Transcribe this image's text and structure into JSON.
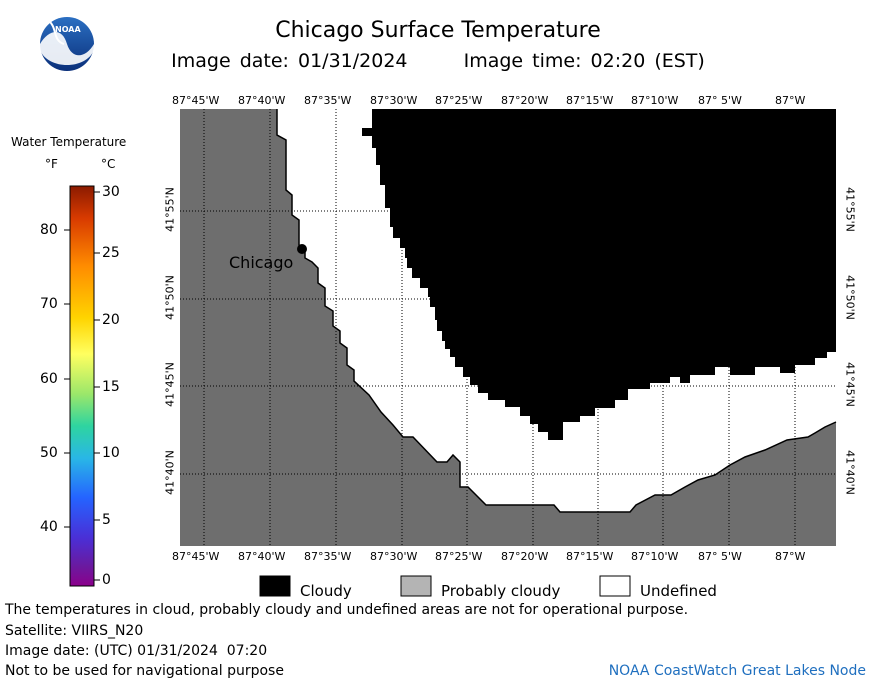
{
  "header": {
    "title": "Chicago Surface Temperature",
    "date_label": "Image date: 01/31/2024",
    "time_label": "Image time: 02:20 (EST)"
  },
  "logo": {
    "text": "NOAA",
    "icon": "noaa-logo"
  },
  "colorbar": {
    "title": "Water Temperature",
    "unit_f": "°F",
    "unit_c": "°C",
    "f_ticks": [
      "80",
      "70",
      "60",
      "50",
      "40"
    ],
    "c_ticks": [
      "30",
      "25",
      "20",
      "15",
      "10",
      "5",
      "0"
    ],
    "colors_top_to_bottom": [
      "#8b1a00",
      "#d83a00",
      "#ff8c00",
      "#ffd400",
      "#ffff60",
      "#9be76a",
      "#2ed4a0",
      "#29b7e6",
      "#2563ff",
      "#4a2fd6",
      "#6a1aa0",
      "#8b008b"
    ]
  },
  "map": {
    "lon_labels": [
      "87°45'W",
      "87°40'W",
      "87°35'W",
      "87°30'W",
      "87°25'W",
      "87°20'W",
      "87°15'W",
      "87°10'W",
      "87° 5'W",
      "87°W"
    ],
    "lat_labels": [
      "41°55'N",
      "41°50'N",
      "41°45'N",
      "41°40'N"
    ],
    "city_label": "Chicago",
    "colors": {
      "land": "#6e6e6e",
      "cloudy": "#000000",
      "undefined": "#ffffff"
    }
  },
  "key": {
    "cloudy": "Cloudy",
    "probably_cloudy": "Probably cloudy",
    "undefined": "Undefined"
  },
  "footer": {
    "note": "The temperatures in cloud, probably cloudy and undefined areas are not for operational purpose.",
    "satellite": "Satellite: VIIRS_N20",
    "utc_date": "Image date: (UTC) 01/31/2024  07:20",
    "nav_warning": "Not to be used for navigational purpose",
    "credit": "NOAA CoastWatch Great Lakes Node"
  }
}
